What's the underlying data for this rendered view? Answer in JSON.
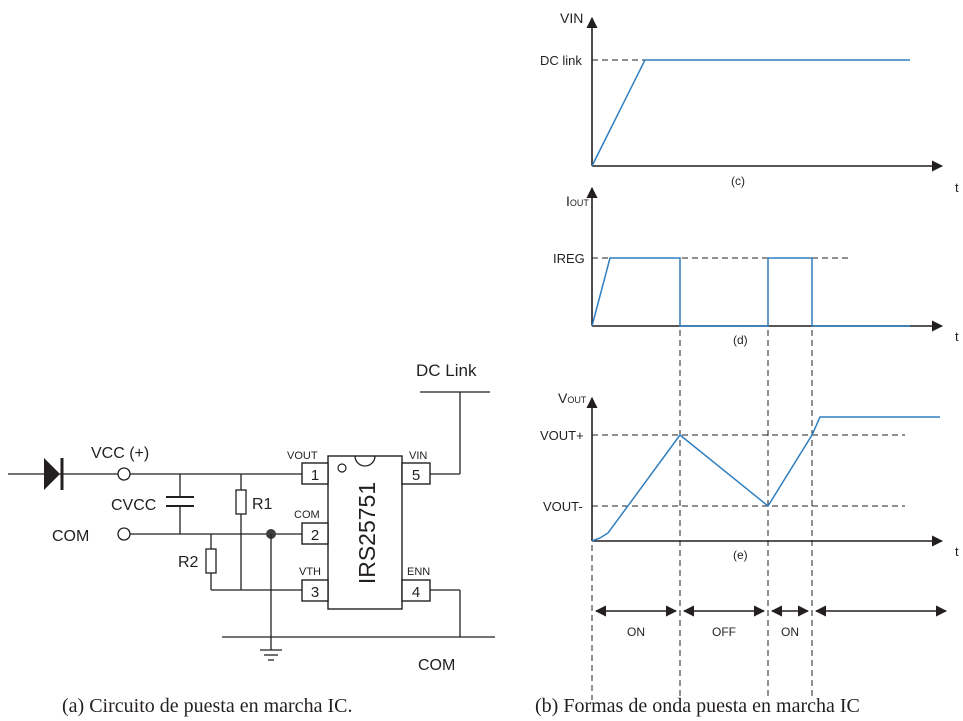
{
  "circuit": {
    "dc_link": "DC Link",
    "vcc": "VCC (+)",
    "cvcc": "CVCC",
    "com_left": "COM",
    "com_bottom": "COM",
    "r1": "R1",
    "r2": "R2",
    "chip_name": "IRS25751",
    "pins": [
      {
        "num": "1",
        "name": "VOUT"
      },
      {
        "num": "2",
        "name": "COM"
      },
      {
        "num": "3",
        "name": "VTH"
      },
      {
        "num": "4",
        "name": "ENN"
      },
      {
        "num": "5",
        "name": "VIN"
      }
    ]
  },
  "waveforms": {
    "vin": {
      "y_label": "VIN",
      "level_label": "DC link",
      "x_label": "t",
      "sub_label": "(c)"
    },
    "iout": {
      "y_label_main": "I",
      "y_label_sub": "OUT",
      "level_label": "IREG",
      "x_label": "t",
      "sub_label": "(d)"
    },
    "vout": {
      "y_label_main": "V",
      "y_label_sub": "OUT",
      "upper_label": "VOUT+",
      "lower_label": "VOUT-",
      "x_label": "t",
      "sub_label": "(e)"
    },
    "phases": [
      "ON",
      "OFF",
      "ON"
    ]
  },
  "captions": {
    "a": "(a)  Circuito de puesta en marcha IC.",
    "b": "(b)  Formas de onda puesta en marcha IC"
  }
}
